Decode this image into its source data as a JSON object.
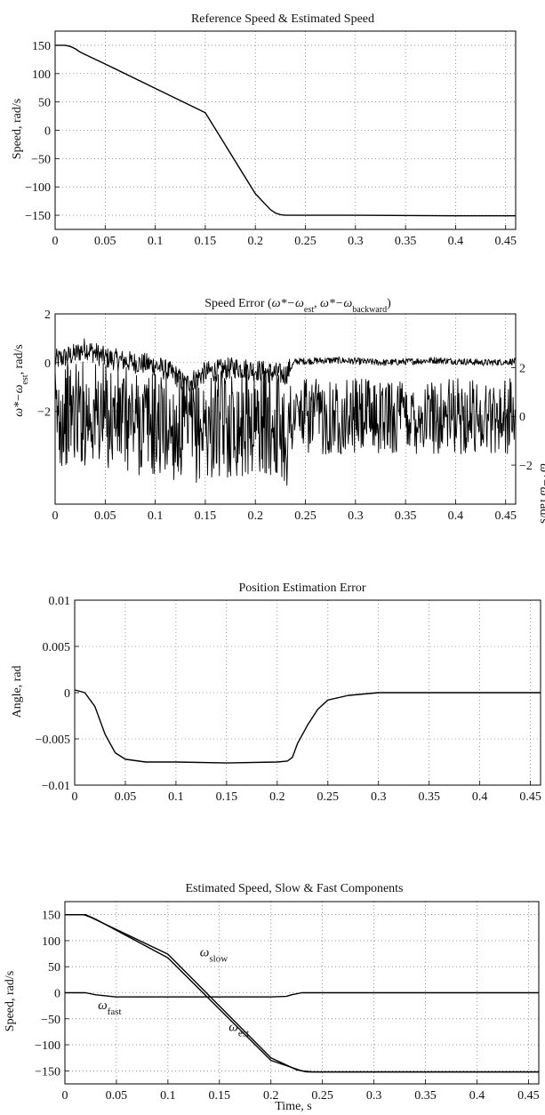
{
  "chart_data": [
    {
      "type": "line",
      "title": "Reference Speed & Estimated Speed",
      "xlabel": "",
      "ylabel": "Speed, rad/s",
      "xlim": [
        0,
        0.46
      ],
      "ylim": [
        -175,
        175
      ],
      "grid": true,
      "xticks": [
        0,
        0.05,
        0.1,
        0.15,
        0.2,
        0.25,
        0.3,
        0.35,
        0.4,
        0.45
      ],
      "xtick_labels": [
        "0",
        "0.05",
        "0.1",
        "0.15",
        "0.2",
        "0.25",
        "0.3",
        "0.35",
        "0.4",
        "0.45"
      ],
      "yticks": [
        150,
        100,
        50,
        0,
        -50,
        -100,
        -150
      ],
      "ytick_labels": [
        "150",
        "100",
        "50",
        "0",
        "−50",
        "−100",
        "−150"
      ],
      "series": [
        {
          "color": "#000000",
          "x": [
            0,
            0.01,
            0.015,
            0.02,
            0.025,
            0.05,
            0.1,
            0.15,
            0.2,
            0.215,
            0.22,
            0.225,
            0.23,
            0.3,
            0.4,
            0.46
          ],
          "y": [
            150,
            150,
            148,
            144,
            138,
            117,
            74,
            31,
            -112,
            -140,
            -146,
            -149,
            -150,
            -150,
            -151,
            -151
          ]
        }
      ]
    },
    {
      "type": "line",
      "title": "Speed Error (ω*−ω<sub>est</sub>, ω*−ω<sub>backward</sub>)",
      "title_parts": {
        "lead": "Speed Error (",
        "omega1": "ω*−ω",
        "sub1": "est",
        "sep": ", ",
        "omega2": "ω*−ω",
        "sub2": "backward",
        "tail": ")"
      },
      "xlabel": "",
      "ylabel_parts": {
        "main": "ω*−ω",
        "sub": "est",
        "tail": ", rad/s"
      },
      "ylabel_right_parts": {
        "main": "ω*−ω",
        "tail": "rad/s"
      },
      "xlim": [
        0,
        0.46
      ],
      "ylim": [
        -5.8,
        2
      ],
      "grid": true,
      "xticks": [
        0,
        0.05,
        0.1,
        0.15,
        0.2,
        0.25,
        0.3,
        0.35,
        0.4,
        0.45
      ],
      "xtick_labels": [
        "0",
        "0.05",
        "0.1",
        "0.15",
        "0.2",
        "0.25",
        "0.3",
        "0.35",
        "0.4",
        "0.45"
      ],
      "yticks": [
        2,
        0,
        -2
      ],
      "ytick_labels": [
        "2",
        "0",
        "−2"
      ],
      "yticks_right_values": [
        2,
        0,
        -2
      ],
      "ytick_right_labels": [
        "2",
        "0",
        "−2"
      ],
      "series": [
        {
          "color": "#000000",
          "axis": "left",
          "x": [
            0,
            0.02,
            0.03,
            0.05,
            0.08,
            0.1,
            0.12,
            0.13,
            0.15,
            0.18,
            0.2,
            0.23,
            0.24,
            0.28,
            0.33,
            0.38,
            0.43,
            0.46
          ],
          "y": [
            0.1,
            0.35,
            0.6,
            0.2,
            0.0,
            -0.1,
            -0.5,
            -0.9,
            -0.4,
            -0.2,
            -0.3,
            -0.5,
            0.05,
            0.1,
            0.0,
            0.1,
            0.0,
            0.05
          ]
        },
        {
          "color": "#000000",
          "axis": "right",
          "x": [
            0,
            0.02,
            0.05,
            0.1,
            0.13,
            0.17,
            0.2,
            0.225,
            0.233,
            0.236,
            0.3,
            0.4,
            0.46
          ],
          "y": [
            0.0,
            0.2,
            0.0,
            -0.3,
            -0.6,
            -0.3,
            -0.2,
            -0.3,
            -1.0,
            0.0,
            0.0,
            0.0,
            0.0
          ]
        }
      ]
    },
    {
      "type": "line",
      "title": "Position Estimation Error",
      "xlabel": "",
      "ylabel": "Angle, rad",
      "xlim": [
        0,
        0.46
      ],
      "ylim": [
        -0.01,
        0.01
      ],
      "grid": true,
      "xticks": [
        0,
        0.05,
        0.1,
        0.15,
        0.2,
        0.25,
        0.3,
        0.35,
        0.4,
        0.45
      ],
      "xtick_labels": [
        "0",
        "0.05",
        "0.1",
        "0.15",
        "0.2",
        "0.25",
        "0.3",
        "0.35",
        "0.4",
        "0.45"
      ],
      "yticks": [
        0.01,
        0.005,
        0,
        -0.005,
        -0.01
      ],
      "ytick_labels": [
        "0.01",
        "0.005",
        "0",
        "−0.005",
        "−0.01"
      ],
      "series": [
        {
          "color": "#000000",
          "x": [
            0,
            0.01,
            0.02,
            0.03,
            0.04,
            0.05,
            0.07,
            0.1,
            0.15,
            0.2,
            0.21,
            0.215,
            0.22,
            0.23,
            0.24,
            0.25,
            0.27,
            0.3,
            0.35,
            0.4,
            0.46
          ],
          "y": [
            0.0003,
            0.0,
            -0.0015,
            -0.0045,
            -0.0065,
            -0.0072,
            -0.0075,
            -0.0075,
            -0.0076,
            -0.0075,
            -0.0074,
            -0.007,
            -0.0055,
            -0.0035,
            -0.0018,
            -0.0008,
            -0.0003,
            0.0,
            0.0,
            0.0,
            0.0
          ]
        }
      ]
    },
    {
      "type": "line",
      "title": "Estimated Speed, Slow & Fast Components",
      "xlabel": "Time, s",
      "ylabel": "Speed, rad/s",
      "xlim": [
        0,
        0.46
      ],
      "ylim": [
        -175,
        175
      ],
      "grid": true,
      "xticks": [
        0,
        0.05,
        0.1,
        0.15,
        0.2,
        0.25,
        0.3,
        0.35,
        0.4,
        0.45
      ],
      "xtick_labels": [
        "0",
        "0.05",
        "0.1",
        "0.15",
        "0.2",
        "0.25",
        "0.3",
        "0.35",
        "0.4",
        "0.45"
      ],
      "yticks": [
        150,
        100,
        50,
        0,
        -50,
        -100,
        -150
      ],
      "ytick_labels": [
        "150",
        "100",
        "50",
        "0",
        "−50",
        "−100",
        "−150"
      ],
      "series": [
        {
          "name": "ω_slow",
          "color": "#000000",
          "x": [
            0,
            0.018,
            0.025,
            0.1,
            0.2,
            0.225,
            0.235,
            0.24,
            0.3,
            0.46
          ],
          "y": [
            150,
            150,
            145,
            74,
            -125,
            -148,
            -152,
            -152,
            -152,
            -152
          ]
        },
        {
          "name": "ω_est",
          "color": "#000000",
          "x": [
            0,
            0.02,
            0.03,
            0.1,
            0.2,
            0.23,
            0.24,
            0.25,
            0.3,
            0.46
          ],
          "y": [
            150,
            150,
            141,
            67,
            -130,
            -150,
            -152,
            -152,
            -152,
            -152
          ]
        },
        {
          "name": "ω_fast",
          "color": "#000000",
          "x": [
            0,
            0.02,
            0.03,
            0.05,
            0.1,
            0.15,
            0.2,
            0.215,
            0.22,
            0.23,
            0.24,
            0.3,
            0.46
          ],
          "y": [
            0,
            0,
            -4,
            -8,
            -8,
            -8,
            -8,
            -7,
            -4,
            0,
            0,
            0,
            0
          ]
        }
      ],
      "annotations": [
        {
          "main": "ω",
          "sub": "slow",
          "x": 0.131,
          "y": 70
        },
        {
          "main": "ω",
          "sub": "fast",
          "x": 0.032,
          "y": -32
        },
        {
          "main": "ω",
          "sub": "est",
          "x": 0.159,
          "y": -73
        }
      ]
    }
  ]
}
